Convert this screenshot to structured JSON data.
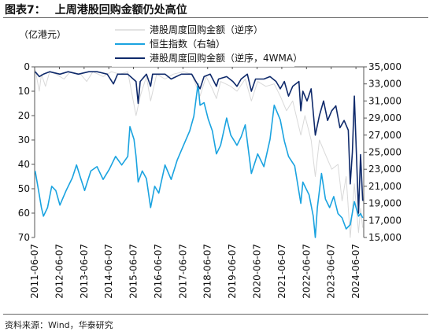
{
  "title": {
    "figure_label": "图表7：",
    "text": "上周港股回购金额仍处高位"
  },
  "source": "资料来源：Wind，华泰研究",
  "chart_data": {
    "type": "line",
    "unit_label": "（亿港元）",
    "y_left": {
      "ticks": [
        "0",
        "10",
        "20",
        "30",
        "40",
        "50",
        "60",
        "70"
      ],
      "range": [
        0,
        70
      ],
      "reversed": true
    },
    "y_right": {
      "ticks": [
        "35,000",
        "33,000",
        "31,000",
        "29,000",
        "27,000",
        "25,000",
        "23,000",
        "21,000",
        "19,000",
        "17,000",
        "15,000"
      ],
      "range": [
        15000,
        35000
      ]
    },
    "x_ticks": [
      "2011-06-07",
      "2012-06-07",
      "2013-06-07",
      "2014-06-07",
      "2015-06-07",
      "2016-06-07",
      "2017-06-07",
      "2018-06-07",
      "2019-06-07",
      "2020-06-07",
      "2021-06-07",
      "2022-06-07",
      "2023-06-07",
      "2024-06-07"
    ],
    "x_range": [
      "2011-06-07",
      "2024-09-30"
    ],
    "legend_position": "top-right",
    "series": [
      {
        "name": "港股周度回购金额（逆序）",
        "axis": "left",
        "color": "#d9d9d9",
        "points": [
          [
            "2011-06",
            1
          ],
          [
            "2011-08",
            10
          ],
          [
            "2011-09",
            3
          ],
          [
            "2011-11",
            8
          ],
          [
            "2012-01",
            2
          ],
          [
            "2012-04",
            3
          ],
          [
            "2012-08",
            5
          ],
          [
            "2012-11",
            2
          ],
          [
            "2013-04",
            3
          ],
          [
            "2013-07",
            6
          ],
          [
            "2013-10",
            2
          ],
          [
            "2014-03",
            4
          ],
          [
            "2014-07",
            2
          ],
          [
            "2014-11",
            3
          ],
          [
            "2015-03",
            2
          ],
          [
            "2015-07",
            20
          ],
          [
            "2015-09",
            12
          ],
          [
            "2015-12",
            4
          ],
          [
            "2016-02",
            14
          ],
          [
            "2016-05",
            3
          ],
          [
            "2016-09",
            5
          ],
          [
            "2017-01",
            3
          ],
          [
            "2017-06",
            2
          ],
          [
            "2017-10",
            3
          ],
          [
            "2018-02",
            12
          ],
          [
            "2018-05",
            4
          ],
          [
            "2018-08",
            9
          ],
          [
            "2018-10",
            13
          ],
          [
            "2018-12",
            6
          ],
          [
            "2019-05",
            8
          ],
          [
            "2019-08",
            10
          ],
          [
            "2019-12",
            5
          ],
          [
            "2020-03",
            14
          ],
          [
            "2020-06",
            6
          ],
          [
            "2020-10",
            8
          ],
          [
            "2021-02",
            7
          ],
          [
            "2021-05",
            12
          ],
          [
            "2021-08",
            18
          ],
          [
            "2021-11",
            14
          ],
          [
            "2022-03",
            28
          ],
          [
            "2022-05",
            20
          ],
          [
            "2022-08",
            30
          ],
          [
            "2022-10",
            45
          ],
          [
            "2022-12",
            30
          ],
          [
            "2023-03",
            36
          ],
          [
            "2023-06",
            42
          ],
          [
            "2023-09",
            40
          ],
          [
            "2023-11",
            55
          ],
          [
            "2024-01",
            45
          ],
          [
            "2024-03",
            70
          ],
          [
            "2024-05",
            48
          ],
          [
            "2024-07",
            68
          ],
          [
            "2024-08",
            58
          ],
          [
            "2024-09",
            66
          ]
        ]
      },
      {
        "name": "恒生指数（右轴）",
        "axis": "right",
        "color": "#1aa3e0",
        "points": [
          [
            "2011-06",
            22800
          ],
          [
            "2011-08",
            20000
          ],
          [
            "2011-09",
            18500
          ],
          [
            "2011-10",
            17500
          ],
          [
            "2011-12",
            18500
          ],
          [
            "2012-02",
            21000
          ],
          [
            "2012-04",
            20500
          ],
          [
            "2012-06",
            18800
          ],
          [
            "2012-09",
            20500
          ],
          [
            "2012-12",
            22000
          ],
          [
            "2013-02",
            23500
          ],
          [
            "2013-04",
            22000
          ],
          [
            "2013-06",
            20500
          ],
          [
            "2013-09",
            22800
          ],
          [
            "2013-12",
            23300
          ],
          [
            "2014-03",
            21800
          ],
          [
            "2014-06",
            23000
          ],
          [
            "2014-09",
            24500
          ],
          [
            "2014-12",
            23500
          ],
          [
            "2015-03",
            24500
          ],
          [
            "2015-04",
            28000
          ],
          [
            "2015-06",
            26500
          ],
          [
            "2015-07",
            24500
          ],
          [
            "2015-08",
            21500
          ],
          [
            "2015-10",
            22800
          ],
          [
            "2015-12",
            21900
          ],
          [
            "2016-02",
            18500
          ],
          [
            "2016-04",
            21000
          ],
          [
            "2016-06",
            20200
          ],
          [
            "2016-09",
            23500
          ],
          [
            "2016-12",
            21800
          ],
          [
            "2017-03",
            24100
          ],
          [
            "2017-06",
            25800
          ],
          [
            "2017-09",
            27500
          ],
          [
            "2017-11",
            29200
          ],
          [
            "2018-01",
            33000
          ],
          [
            "2018-02",
            30500
          ],
          [
            "2018-04",
            30800
          ],
          [
            "2018-06",
            28900
          ],
          [
            "2018-08",
            27500
          ],
          [
            "2018-10",
            24800
          ],
          [
            "2018-12",
            25800
          ],
          [
            "2019-03",
            29000
          ],
          [
            "2019-05",
            27000
          ],
          [
            "2019-08",
            25800
          ],
          [
            "2019-10",
            26800
          ],
          [
            "2019-12",
            28200
          ],
          [
            "2020-03",
            22500
          ],
          [
            "2020-06",
            24800
          ],
          [
            "2020-09",
            23300
          ],
          [
            "2020-12",
            26500
          ],
          [
            "2021-02",
            30500
          ],
          [
            "2021-05",
            28800
          ],
          [
            "2021-07",
            26300
          ],
          [
            "2021-09",
            24500
          ],
          [
            "2021-12",
            23400
          ],
          [
            "2022-03",
            19000
          ],
          [
            "2022-04",
            21500
          ],
          [
            "2022-07",
            20000
          ],
          [
            "2022-09",
            17500
          ],
          [
            "2022-10",
            15000
          ],
          [
            "2022-11",
            18500
          ],
          [
            "2023-01",
            22500
          ],
          [
            "2023-03",
            19500
          ],
          [
            "2023-05",
            18500
          ],
          [
            "2023-07",
            19800
          ],
          [
            "2023-09",
            17800
          ],
          [
            "2023-11",
            17300
          ],
          [
            "2024-01",
            16000
          ],
          [
            "2024-03",
            16500
          ],
          [
            "2024-05",
            19200
          ],
          [
            "2024-07",
            17500
          ],
          [
            "2024-08",
            17800
          ],
          [
            "2024-09",
            17300
          ]
        ]
      },
      {
        "name": "港股周度回购金额（逆序，4WMA）",
        "axis": "left",
        "color": "#0f2a6b",
        "points": [
          [
            "2011-06",
            2
          ],
          [
            "2011-08",
            4
          ],
          [
            "2011-10",
            3
          ],
          [
            "2012-01",
            2
          ],
          [
            "2012-06",
            3
          ],
          [
            "2012-10",
            2
          ],
          [
            "2013-03",
            3
          ],
          [
            "2013-08",
            2
          ],
          [
            "2013-12",
            2
          ],
          [
            "2014-05",
            3
          ],
          [
            "2014-08",
            7
          ],
          [
            "2014-10",
            3
          ],
          [
            "2015-03",
            3
          ],
          [
            "2015-07",
            6
          ],
          [
            "2015-08",
            15
          ],
          [
            "2015-09",
            6
          ],
          [
            "2015-12",
            3
          ],
          [
            "2016-02",
            8
          ],
          [
            "2016-03",
            3
          ],
          [
            "2016-09",
            3
          ],
          [
            "2016-12",
            5
          ],
          [
            "2017-05",
            3
          ],
          [
            "2017-10",
            3
          ],
          [
            "2018-02",
            9
          ],
          [
            "2018-04",
            4
          ],
          [
            "2018-07",
            3
          ],
          [
            "2018-10",
            8
          ],
          [
            "2018-11",
            5
          ],
          [
            "2019-03",
            4
          ],
          [
            "2019-06",
            6
          ],
          [
            "2019-08",
            8
          ],
          [
            "2019-10",
            5
          ],
          [
            "2020-01",
            3
          ],
          [
            "2020-03",
            10
          ],
          [
            "2020-05",
            5
          ],
          [
            "2020-09",
            5
          ],
          [
            "2020-12",
            4
          ],
          [
            "2021-03",
            6
          ],
          [
            "2021-05",
            9
          ],
          [
            "2021-07",
            6
          ],
          [
            "2021-09",
            12
          ],
          [
            "2021-11",
            8
          ],
          [
            "2022-02",
            6
          ],
          [
            "2022-03",
            18
          ],
          [
            "2022-04",
            10
          ],
          [
            "2022-06",
            14
          ],
          [
            "2022-08",
            9
          ],
          [
            "2022-10",
            28
          ],
          [
            "2022-12",
            20
          ],
          [
            "2023-02",
            14
          ],
          [
            "2023-04",
            22
          ],
          [
            "2023-06",
            18
          ],
          [
            "2023-08",
            16
          ],
          [
            "2023-10",
            25
          ],
          [
            "2023-12",
            22
          ],
          [
            "2024-02",
            26
          ],
          [
            "2024-03",
            48
          ],
          [
            "2024-04",
            35
          ],
          [
            "2024-05",
            12
          ],
          [
            "2024-07",
            60
          ],
          [
            "2024-08",
            36
          ],
          [
            "2024-09",
            55
          ]
        ]
      }
    ]
  }
}
